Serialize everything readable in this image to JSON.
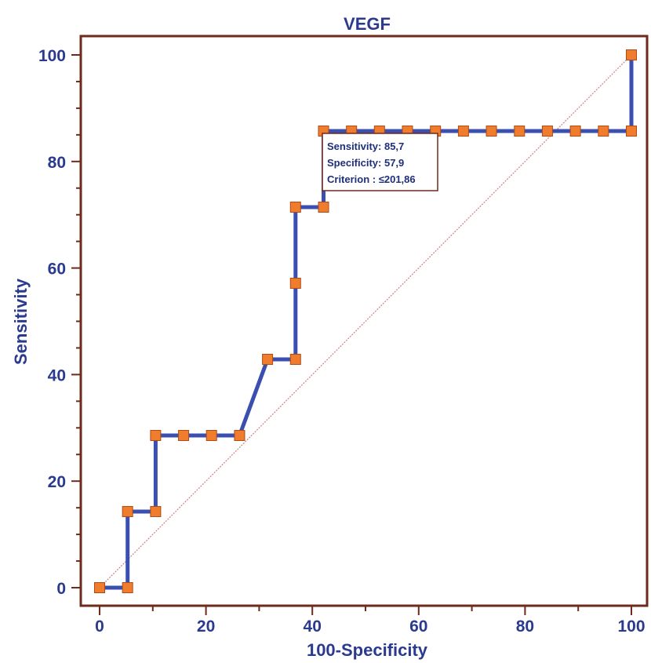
{
  "chart_data": {
    "type": "line",
    "title": "VEGF",
    "xlabel": "100-Specificity",
    "ylabel": "Sensitivity",
    "xlim": [
      0,
      100
    ],
    "ylim": [
      0,
      100
    ],
    "xticks": [
      "0",
      "20",
      "40",
      "60",
      "80",
      "100"
    ],
    "yticks": [
      "0",
      "20",
      "40",
      "60",
      "80",
      "100"
    ],
    "grid": false,
    "colors": {
      "line": "#3a4fb0",
      "marker": "#f07d2e",
      "marker_edge": "#b04a12",
      "diagonal": "#c9847c",
      "frame": "#6e2a1c",
      "text": "#2a3a8e"
    },
    "series": [
      {
        "x": [
          0,
          5.26,
          5.26,
          10.53,
          10.53,
          15.79,
          21.05,
          26.32,
          31.58,
          36.84,
          36.84,
          36.84,
          42.11,
          42.11,
          47.37,
          52.63,
          57.89,
          63.16,
          68.42,
          73.68,
          78.95,
          84.21,
          89.47,
          94.74,
          100,
          100
        ],
        "y": [
          0,
          0,
          14.29,
          14.29,
          28.57,
          28.57,
          28.57,
          28.57,
          42.86,
          42.86,
          57.14,
          71.43,
          71.43,
          85.71,
          85.71,
          85.71,
          85.71,
          85.71,
          85.71,
          85.71,
          85.71,
          85.71,
          85.71,
          85.71,
          85.71,
          100
        ]
      }
    ],
    "reference_line": {
      "x": [
        0,
        100
      ],
      "y": [
        0,
        100
      ]
    },
    "annotation": {
      "lines": [
        "Sensitivity: 85,7",
        "Specificity: 57,9",
        "Criterion : ≤201,86"
      ],
      "point": [
        42.11,
        85.71
      ]
    }
  }
}
